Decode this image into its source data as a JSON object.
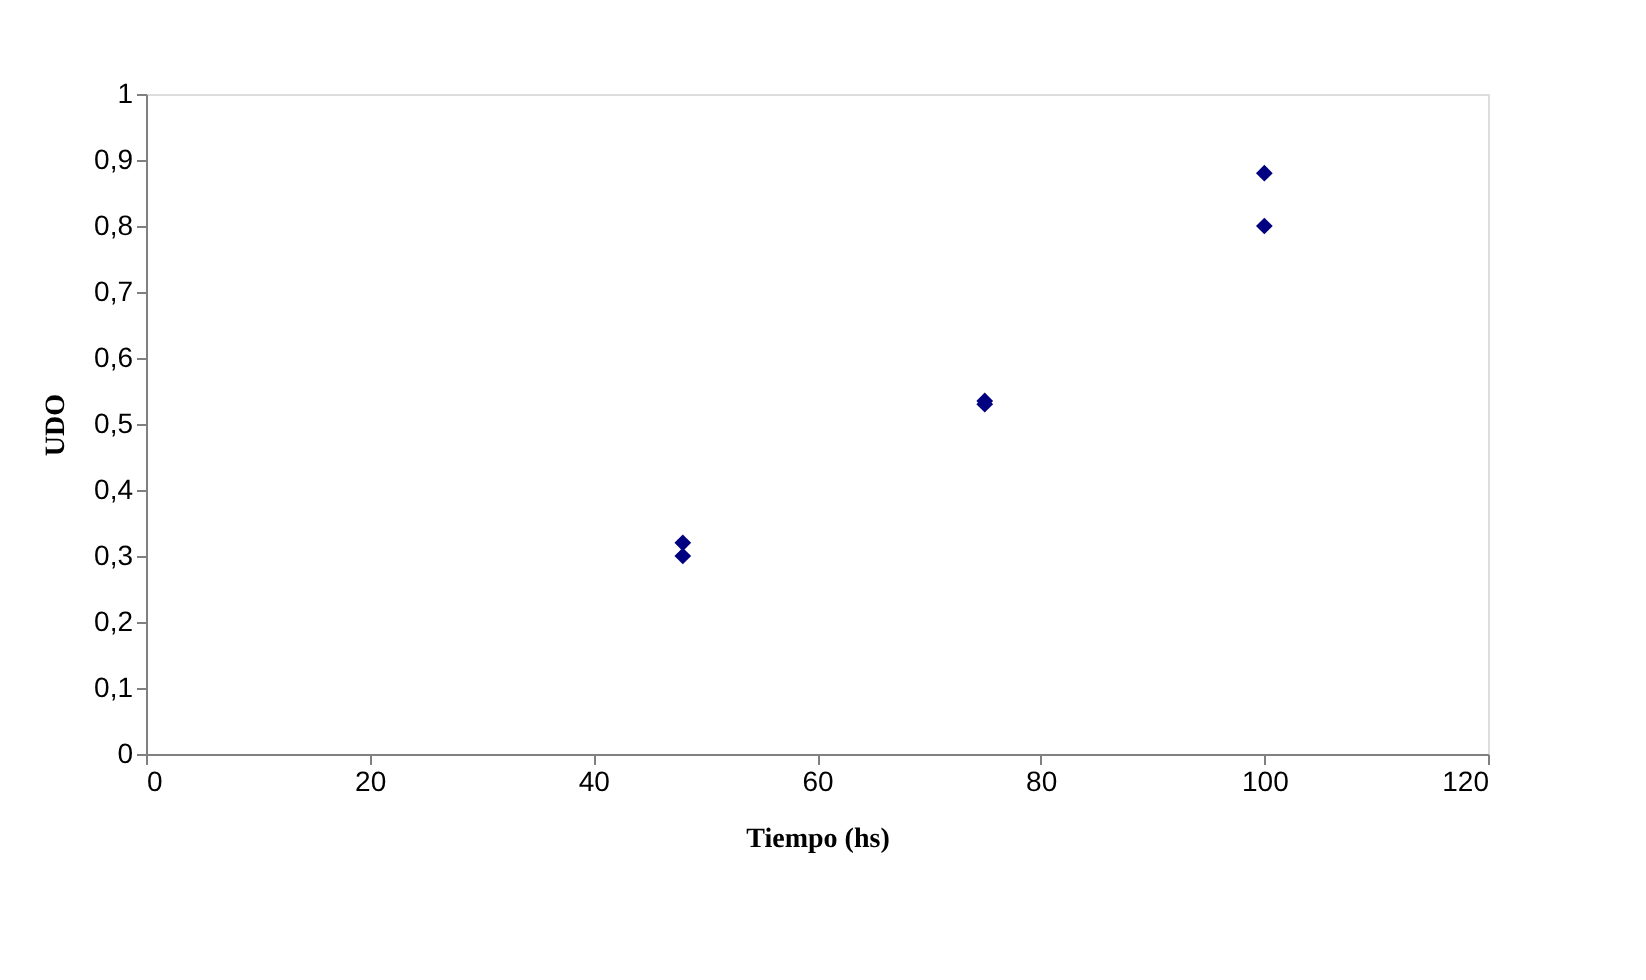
{
  "chart_data": {
    "type": "scatter",
    "xlabel": "Tiempo (hs)",
    "ylabel": "UDO",
    "x": [
      48,
      48,
      75,
      75,
      100,
      100
    ],
    "values": [
      0.32,
      0.3,
      0.535,
      0.53,
      0.88,
      0.8
    ],
    "color": "#000080",
    "marker": "diamond",
    "xlim": [
      0,
      120
    ],
    "xticks": [
      0,
      20,
      40,
      60,
      80,
      100,
      120
    ],
    "ylim": [
      0,
      1
    ],
    "yticks": [
      {
        "value": 0,
        "label": "0"
      },
      {
        "value": 0.1,
        "label": "0,1"
      },
      {
        "value": 0.2,
        "label": "0,2"
      },
      {
        "value": 0.3,
        "label": "0,3"
      },
      {
        "value": 0.4,
        "label": "0,4"
      },
      {
        "value": 0.5,
        "label": "0,5"
      },
      {
        "value": 0.6,
        "label": "0,6"
      },
      {
        "value": 0.7,
        "label": "0,7"
      },
      {
        "value": 0.8,
        "label": "0,8"
      },
      {
        "value": 0.9,
        "label": "0,9"
      },
      {
        "value": 1,
        "label": "1"
      }
    ],
    "grid": false
  }
}
